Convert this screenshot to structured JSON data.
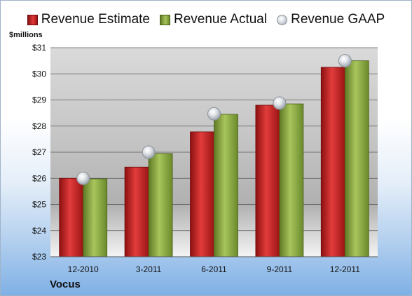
{
  "legend": {
    "estimate": "Revenue Estimate",
    "actual": "Revenue Actual",
    "gaap": "Revenue GAAP"
  },
  "units_label": "$millions",
  "company": "Vocus",
  "colors": {
    "estimate": "#c8262b",
    "actual": "#8fae48",
    "gaap": "#c9cdd2"
  },
  "chart_data": {
    "type": "bar",
    "categories": [
      "12-2010",
      "3-2011",
      "6-2011",
      "9-2011",
      "12-2011"
    ],
    "series": [
      {
        "name": "Revenue Estimate",
        "values": [
          26.0,
          26.43,
          27.78,
          28.8,
          30.25
        ]
      },
      {
        "name": "Revenue Actual",
        "values": [
          25.98,
          26.95,
          28.45,
          28.85,
          30.5
        ]
      },
      {
        "name": "Revenue GAAP",
        "values": [
          26.0,
          27.0,
          28.47,
          28.88,
          30.5
        ]
      }
    ],
    "ylabel": "$millions",
    "ylim": [
      23,
      31
    ],
    "yticks": [
      "$23",
      "$24",
      "$25",
      "$26",
      "$27",
      "$28",
      "$29",
      "$30",
      "$31"
    ],
    "grid": true,
    "legend_position": "top"
  }
}
